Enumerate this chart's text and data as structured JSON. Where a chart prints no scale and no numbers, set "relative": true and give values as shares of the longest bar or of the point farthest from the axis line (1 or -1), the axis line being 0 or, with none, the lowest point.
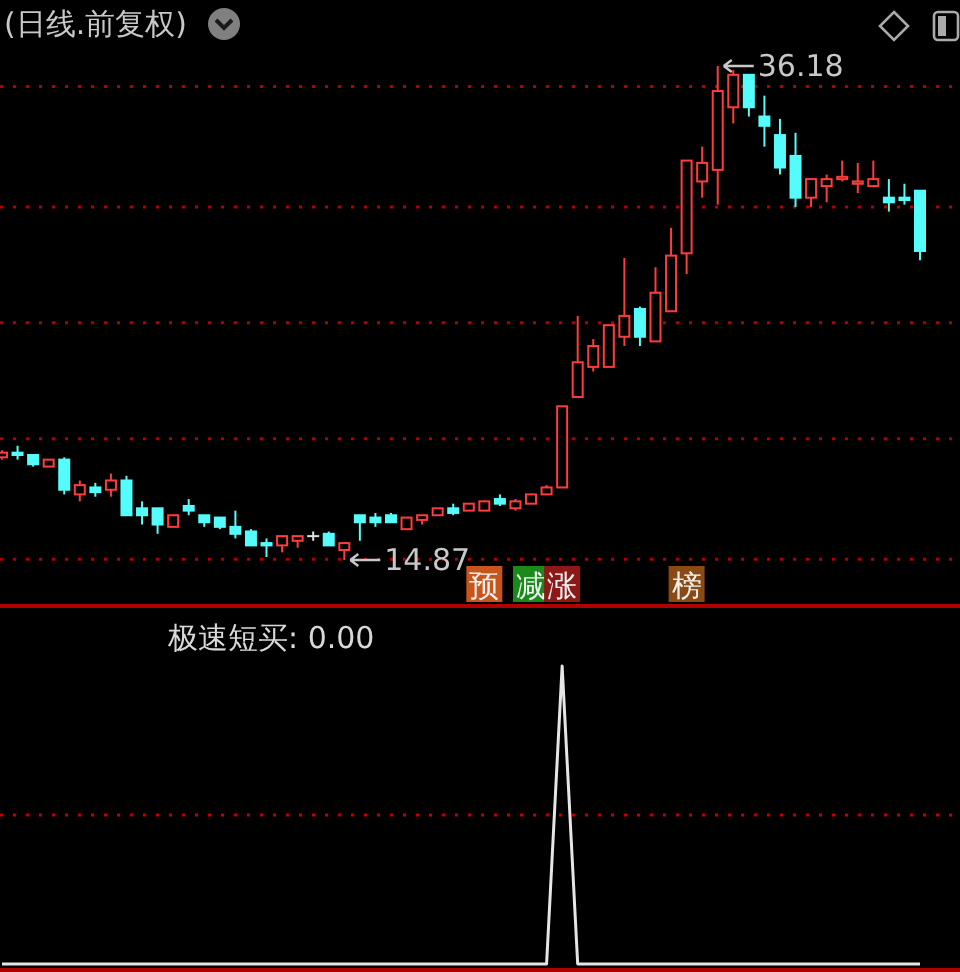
{
  "chart_data": [
    {
      "type": "candlestick",
      "title": "(日线.前复权)",
      "categories": [
        null,
        null,
        null,
        null,
        null,
        null,
        null,
        null,
        null,
        null,
        null,
        null,
        null,
        null,
        null,
        null,
        null,
        null,
        null,
        null,
        null,
        null,
        null,
        null,
        null,
        null,
        null,
        null,
        null,
        null,
        null,
        null,
        null,
        null,
        null,
        null,
        null,
        null,
        null,
        null,
        null,
        null,
        null,
        null,
        null,
        null,
        null,
        null,
        null,
        null,
        null,
        null,
        null,
        null,
        null,
        null,
        null,
        null,
        null,
        null
      ],
      "ohlc": [
        [
          19.3,
          19.6,
          19.2,
          19.5
        ],
        [
          19.5,
          19.8,
          19.2,
          19.4
        ],
        [
          19.4,
          19.4,
          18.9,
          19.0
        ],
        [
          18.9,
          19.2,
          18.9,
          19.2
        ],
        [
          19.2,
          19.3,
          17.7,
          17.9
        ],
        [
          17.7,
          18.3,
          17.4,
          18.1
        ],
        [
          18.0,
          18.2,
          17.6,
          17.8
        ],
        [
          17.9,
          18.6,
          17.6,
          18.3
        ],
        [
          18.3,
          18.5,
          16.8,
          16.8
        ],
        [
          17.1,
          17.4,
          16.4,
          16.8
        ],
        [
          17.1,
          17.1,
          16.0,
          16.4
        ],
        [
          16.3,
          16.8,
          16.3,
          16.8
        ],
        [
          17.2,
          17.5,
          16.8,
          17.0
        ],
        [
          16.8,
          16.8,
          16.3,
          16.5
        ],
        [
          16.7,
          16.7,
          16.2,
          16.3
        ],
        [
          16.3,
          17.0,
          15.8,
          16.0
        ],
        [
          16.1,
          16.2,
          15.5,
          15.5
        ],
        [
          15.6,
          15.8,
          15.0,
          15.5
        ],
        [
          15.5,
          15.9,
          15.2,
          15.9
        ],
        [
          15.7,
          15.9,
          15.4,
          15.9
        ],
        [
          15.9,
          16.1,
          15.7,
          15.9
        ],
        [
          16.0,
          16.1,
          15.5,
          15.5
        ],
        [
          15.3,
          15.6,
          14.87,
          15.6
        ],
        [
          16.8,
          16.8,
          15.7,
          16.5
        ],
        [
          16.7,
          16.9,
          16.3,
          16.5
        ],
        [
          16.8,
          16.9,
          16.5,
          16.5
        ],
        [
          16.2,
          16.7,
          16.2,
          16.7
        ],
        [
          16.6,
          16.8,
          16.4,
          16.8
        ],
        [
          16.8,
          17.1,
          16.8,
          17.1
        ],
        [
          17.1,
          17.3,
          16.8,
          16.9
        ],
        [
          17.0,
          17.3,
          17.0,
          17.3
        ],
        [
          17.0,
          17.4,
          17.0,
          17.4
        ],
        [
          17.5,
          17.7,
          17.2,
          17.3
        ],
        [
          17.1,
          17.5,
          17.0,
          17.4
        ],
        [
          17.3,
          17.7,
          17.3,
          17.7
        ],
        [
          17.7,
          18.1,
          17.7,
          18.0
        ],
        [
          18.0,
          21.5,
          18.0,
          21.5
        ],
        [
          21.9,
          25.4,
          21.9,
          23.4
        ],
        [
          23.2,
          24.4,
          23.0,
          24.1
        ],
        [
          23.2,
          25.0,
          23.2,
          25.0
        ],
        [
          24.5,
          27.9,
          24.1,
          25.4
        ],
        [
          25.7,
          25.8,
          24.1,
          24.5
        ],
        [
          24.3,
          27.5,
          24.3,
          26.4
        ],
        [
          25.6,
          29.2,
          25.6,
          28.0
        ],
        [
          28.1,
          32.1,
          27.2,
          32.1
        ],
        [
          31.2,
          32.7,
          30.5,
          32.0
        ],
        [
          31.7,
          36.18,
          30.2,
          35.1
        ],
        [
          34.4,
          36.0,
          33.7,
          35.8
        ],
        [
          35.8,
          35.8,
          34.0,
          34.4
        ],
        [
          34.0,
          34.9,
          32.7,
          33.6
        ],
        [
          33.2,
          33.9,
          31.5,
          31.8
        ],
        [
          32.3,
          33.3,
          30.1,
          30.5
        ],
        [
          30.5,
          31.3,
          30.1,
          31.3
        ],
        [
          31.0,
          31.5,
          30.3,
          31.3
        ],
        [
          31.3,
          32.1,
          31.2,
          31.4
        ],
        [
          31.1,
          32.0,
          30.7,
          31.2
        ],
        [
          31.0,
          32.1,
          31.0,
          31.3
        ],
        [
          30.5,
          31.3,
          29.9,
          30.3
        ],
        [
          30.5,
          31.1,
          30.2,
          30.4
        ],
        [
          30.8,
          30.8,
          27.8,
          28.2
        ]
      ],
      "yticks": [
        {
          "value": 14.9,
          "label": null
        },
        {
          "value": 20.1,
          "label": null
        },
        {
          "value": 25.1,
          "label": null
        },
        {
          "value": 30.1,
          "label": null
        },
        {
          "value": 35.3,
          "label": null
        }
      ],
      "grid": "y",
      "annotations": [
        "预",
        "减",
        "涨",
        "榜",
        "36.18",
        "14.87"
      ]
    },
    {
      "type": "line",
      "title": "极速短买: 0.00",
      "relative": true,
      "categories": [
        null,
        null,
        null,
        null,
        null,
        null,
        null,
        null,
        null,
        null,
        null,
        null,
        null,
        null,
        null,
        null,
        null,
        null,
        null,
        null,
        null,
        null,
        null,
        null,
        null,
        null,
        null,
        null,
        null,
        null,
        null,
        null,
        null,
        null,
        null,
        null,
        null,
        null,
        null,
        null,
        null,
        null,
        null,
        null,
        null,
        null,
        null,
        null,
        null,
        null,
        null,
        null,
        null,
        null,
        null,
        null,
        null,
        null,
        null,
        null
      ],
      "series": [
        {
          "color": "#e6e6e6",
          "values": [
            0,
            0,
            0,
            0,
            0,
            0,
            0,
            0,
            0,
            0,
            0,
            0,
            0,
            0,
            0,
            0,
            0,
            0,
            0,
            0,
            0,
            0,
            0,
            0,
            0,
            0,
            0,
            0,
            0,
            0,
            0,
            0,
            0,
            0,
            0,
            0,
            1,
            0,
            0,
            0,
            0,
            0,
            0,
            0,
            0,
            0,
            0,
            0,
            0,
            0,
            0,
            0,
            0,
            0,
            0,
            0,
            0,
            0,
            0,
            0
          ]
        }
      ],
      "ref_lines": [
        {
          "axis": "y",
          "value": 0.5,
          "color": "#c00000",
          "line_style": "dotted"
        }
      ]
    }
  ]
}
